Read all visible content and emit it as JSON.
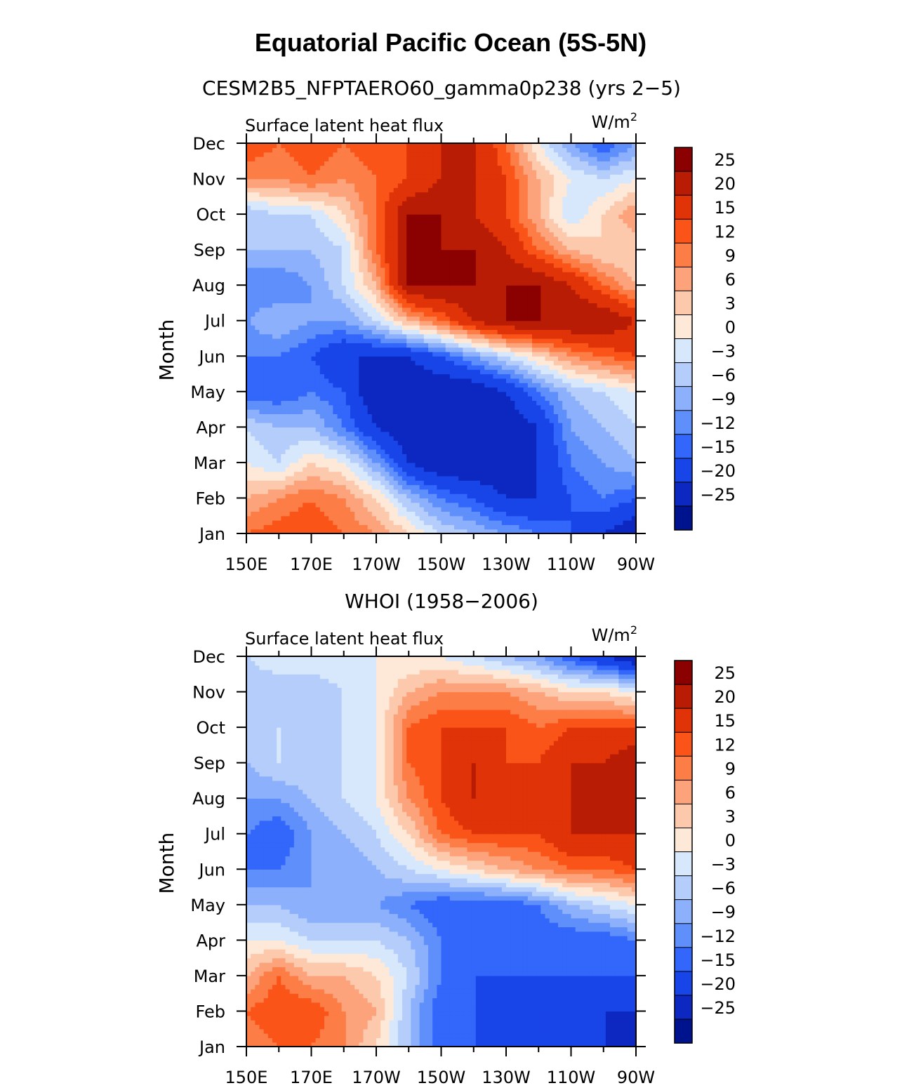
{
  "page": {
    "title": "Equatorial Pacific Ocean (5S-5N)"
  },
  "colorbar": {
    "levels": [
      "25",
      "20",
      "15",
      "12",
      "9",
      "6",
      "3",
      "0",
      "−3",
      "−6",
      "−9",
      "−12",
      "−15",
      "−20",
      "−25"
    ],
    "colors": [
      "#8b0000",
      "#b81c04",
      "#e03308",
      "#fb5418",
      "#fd7d47",
      "#fda37c",
      "#fdc9ad",
      "#fee8d8",
      "#d8e8fc",
      "#b5cdfb",
      "#8cb0fb",
      "#5f8ffb",
      "#3366fb",
      "#1845e8",
      "#0c28c0",
      "#00138e"
    ]
  },
  "chart_data": [
    {
      "type": "heatmap",
      "title": "CESM2B5_NFPTAERO60_gamma0p238 (yrs 2−5)",
      "left_label": "Surface latent heat flux",
      "units_label": "W/m",
      "units_exp": "2",
      "ylabel": "Month",
      "xlabel": "",
      "x_ticks": [
        "150E",
        "170E",
        "170W",
        "150W",
        "130W",
        "110W",
        "90W"
      ],
      "x_range_deg_east": [
        150,
        270
      ],
      "y_ticks": [
        "Jan",
        "Feb",
        "Mar",
        "Apr",
        "May",
        "Jun",
        "Jul",
        "Aug",
        "Sep",
        "Oct",
        "Nov",
        "Dec"
      ],
      "x": [
        150,
        160,
        170,
        180,
        190,
        200,
        210,
        220,
        230,
        240,
        250,
        260,
        270
      ],
      "values": [
        [
          12,
          14,
          15,
          12,
          9,
          3,
          -3,
          -6,
          -9,
          -12,
          -15,
          -20,
          -25
        ],
        [
          6,
          9,
          12,
          9,
          3,
          -6,
          -12,
          -15,
          -20,
          -20,
          -15,
          -12,
          -15
        ],
        [
          0,
          -3,
          3,
          0,
          -9,
          -20,
          -25,
          -25,
          -25,
          -20,
          -12,
          -9,
          -6
        ],
        [
          -3,
          -6,
          -6,
          -12,
          -20,
          -25,
          -25,
          -25,
          -25,
          -20,
          -9,
          -6,
          -3
        ],
        [
          -15,
          -15,
          -12,
          -15,
          -25,
          -25,
          -25,
          -25,
          -20,
          -12,
          -6,
          -3,
          0
        ],
        [
          -12,
          -12,
          -15,
          -20,
          -20,
          -20,
          -15,
          -9,
          -3,
          3,
          9,
          12,
          15
        ],
        [
          -9,
          -6,
          -9,
          -9,
          -3,
          6,
          12,
          20,
          25,
          25,
          25,
          25,
          20
        ],
        [
          -12,
          -12,
          -9,
          -3,
          6,
          25,
          25,
          25,
          25,
          25,
          20,
          12,
          6
        ],
        [
          -6,
          -6,
          -6,
          -3,
          12,
          25,
          25,
          25,
          20,
          12,
          6,
          3,
          3
        ],
        [
          -6,
          -3,
          -3,
          3,
          12,
          25,
          25,
          20,
          15,
          6,
          -3,
          3,
          9
        ],
        [
          9,
          9,
          12,
          9,
          12,
          15,
          20,
          20,
          15,
          6,
          0,
          -3,
          0
        ],
        [
          15,
          12,
          15,
          12,
          15,
          15,
          20,
          20,
          12,
          0,
          -9,
          -15,
          -9
        ]
      ],
      "value_range": [
        -25,
        25
      ]
    },
    {
      "type": "heatmap",
      "title": "WHOI (1958−2006)",
      "left_label": "Surface latent heat flux",
      "units_label": "W/m",
      "units_exp": "2",
      "ylabel": "Month",
      "xlabel": "",
      "x_ticks": [
        "150E",
        "170E",
        "170W",
        "150W",
        "130W",
        "110W",
        "90W"
      ],
      "x_range_deg_east": [
        150,
        270
      ],
      "y_ticks": [
        "Jan",
        "Feb",
        "Mar",
        "Apr",
        "May",
        "Jun",
        "Jul",
        "Aug",
        "Sep",
        "Oct",
        "Nov",
        "Dec"
      ],
      "x": [
        150,
        160,
        170,
        180,
        190,
        200,
        210,
        220,
        230,
        240,
        250,
        260,
        270
      ],
      "values": [
        [
          9,
          12,
          12,
          9,
          3,
          -6,
          -15,
          -15,
          -15,
          -15,
          -20,
          -20,
          -25
        ],
        [
          12,
          15,
          15,
          9,
          6,
          -6,
          -15,
          -15,
          -20,
          -20,
          -20,
          -20,
          -20
        ],
        [
          6,
          12,
          6,
          6,
          3,
          -3,
          -12,
          -15,
          -15,
          -15,
          -15,
          -15,
          -15
        ],
        [
          0,
          0,
          -3,
          -3,
          -3,
          -6,
          -12,
          -15,
          -15,
          -15,
          -15,
          -15,
          -12
        ],
        [
          -6,
          -6,
          -9,
          -9,
          -9,
          -12,
          -15,
          -15,
          -15,
          -12,
          -6,
          -3,
          0
        ],
        [
          -12,
          -12,
          -9,
          -9,
          -6,
          -3,
          0,
          3,
          6,
          9,
          12,
          12,
          15
        ],
        [
          -12,
          -15,
          -9,
          -6,
          -3,
          3,
          12,
          15,
          15,
          15,
          20,
          20,
          20
        ],
        [
          -9,
          -9,
          -6,
          -3,
          0,
          9,
          15,
          20,
          15,
          15,
          20,
          20,
          20
        ],
        [
          -6,
          -3,
          -3,
          -3,
          0,
          12,
          15,
          20,
          15,
          15,
          20,
          20,
          25
        ],
        [
          -3,
          -3,
          -6,
          -3,
          0,
          12,
          15,
          15,
          15,
          12,
          15,
          15,
          15
        ],
        [
          -6,
          -6,
          -6,
          -3,
          0,
          6,
          9,
          9,
          9,
          6,
          3,
          3,
          0
        ],
        [
          -3,
          0,
          0,
          0,
          0,
          0,
          0,
          -3,
          -6,
          -9,
          -15,
          -20,
          -25
        ]
      ],
      "value_range": [
        -25,
        25
      ]
    }
  ]
}
